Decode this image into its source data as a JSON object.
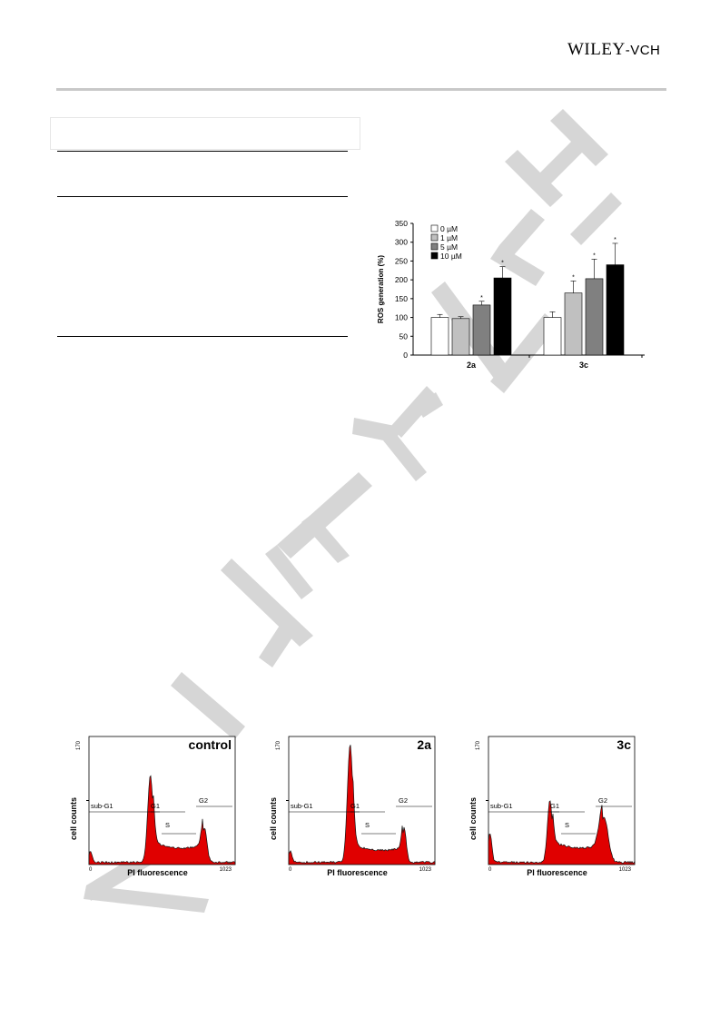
{
  "header": {
    "publisher_main": "WILEY",
    "publisher_suffix": "-VCH"
  },
  "watermark": {
    "text": "WILEY-VCH"
  },
  "chart_data": {
    "type": "bar",
    "categories": [
      "2a",
      "3c"
    ],
    "series": [
      {
        "name": "0 µM",
        "values": [
          100,
          100
        ],
        "errors": [
          8,
          15
        ],
        "significant": [
          false,
          false
        ],
        "color": "#ffffff"
      },
      {
        "name": "1 µM",
        "values": [
          97,
          165
        ],
        "errors": [
          5,
          32
        ],
        "significant": [
          false,
          true
        ],
        "color": "#c0c0c0"
      },
      {
        "name": "5 µM",
        "values": [
          133,
          203
        ],
        "errors": [
          10,
          52
        ],
        "significant": [
          true,
          true
        ],
        "color": "#808080"
      },
      {
        "name": "10 µM",
        "values": [
          205,
          240
        ],
        "errors": [
          30,
          57
        ],
        "significant": [
          true,
          true
        ],
        "color": "#000000"
      }
    ],
    "ylabel": "ROS generation (%)",
    "ylim": [
      0,
      350
    ],
    "yticks": [
      0,
      50,
      100,
      150,
      200,
      250,
      300,
      350
    ],
    "legend_position": "top-left",
    "significance_marker": "*"
  },
  "flow_panels": [
    {
      "title": "control",
      "ymax_label": "170",
      "ylabel": "cell counts",
      "xlabel": "PI fluorescence",
      "x_min_label": "0",
      "x_max_label": "1023",
      "gates": {
        "subg1": "sub-G1",
        "g1": "G1",
        "s": "S",
        "g2": "G2"
      }
    },
    {
      "title": "2a",
      "ymax_label": "170",
      "ylabel": "cell counts",
      "xlabel": "PI fluorescence",
      "x_min_label": "0",
      "x_max_label": "1023",
      "gates": {
        "subg1": "sub-G1",
        "g1": "G1",
        "s": "S",
        "g2": "G2"
      }
    },
    {
      "title": "3c",
      "ymax_label": "170",
      "ylabel": "cell counts",
      "xlabel": "PI fluorescence",
      "x_min_label": "0",
      "x_max_label": "1023",
      "gates": {
        "subg1": "sub-G1",
        "g1": "G1",
        "s": "S",
        "g2": "G2"
      }
    }
  ]
}
